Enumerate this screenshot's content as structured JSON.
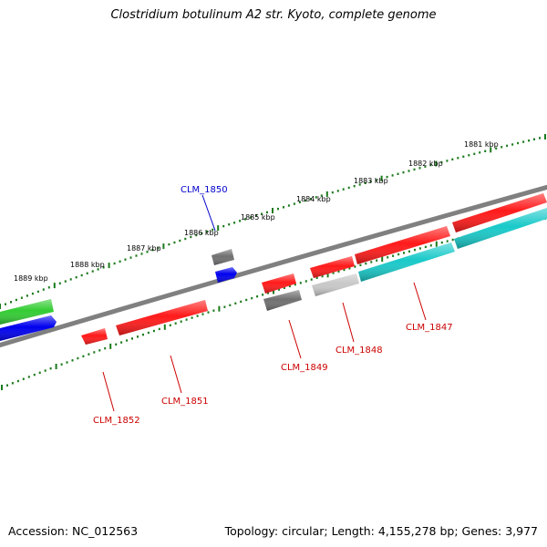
{
  "title": "Clostridium botulinum A2 str. Kyoto, complete genome",
  "footer": {
    "accession": "Accession: NC_012563",
    "stats": "Topology: circular; Length: 4,155,278 bp; Genes: 3,977"
  },
  "colors": {
    "backbone": "#808080",
    "tick": "#1b7a1b",
    "red": "#ff1a1a",
    "blue": "#0000ee",
    "green": "#33cc33",
    "cyan": "#1ac9c9",
    "gray": "#707070",
    "lightgray": "#c8c8c8",
    "label_red": "#cc0000",
    "label_blue": "#0000cc"
  },
  "scale_labels": [
    "1881 kbp",
    "1883 kbp",
    "1882 kbp",
    "1884 kbp",
    "1885 kbp",
    "1886 kbp",
    "1887 kbp",
    "1888 kbp",
    "1889 kbp"
  ],
  "gene_labels": [
    {
      "id": "clm-1850",
      "text": "CLM_1850",
      "color": "blue"
    },
    {
      "id": "clm-1847",
      "text": "CLM_1847",
      "color": "red"
    },
    {
      "id": "clm-1848",
      "text": "CLM_1848",
      "color": "red"
    },
    {
      "id": "clm-1849",
      "text": "CLM_1849",
      "color": "red"
    },
    {
      "id": "clm-1851",
      "text": "CLM_1851",
      "color": "red"
    },
    {
      "id": "clm-1852",
      "text": "CLM_1852",
      "color": "red"
    }
  ]
}
